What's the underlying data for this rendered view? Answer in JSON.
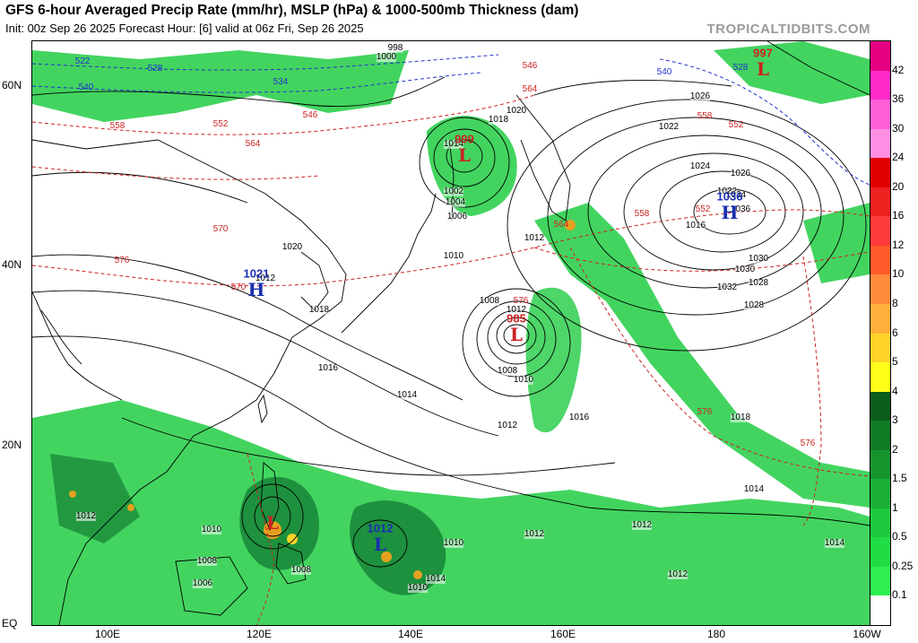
{
  "title": "GFS 6-hour Averaged Precip Rate (mm/hr), MSLP (hPa) & 1000-500mb Thickness (dam)",
  "subtitle": "Init: 00z Sep 26 2025   Forecast Hour: [6]   valid at 06z Fri, Sep 26 2025",
  "site": "TROPICALTIDBITS.COM",
  "map": {
    "lat_labels": [
      "60N",
      "40N",
      "20N",
      "EQ"
    ],
    "lon_labels": [
      "100E",
      "120E",
      "140E",
      "160E",
      "180",
      "160W"
    ],
    "colors": {
      "precip_light": "#22cc44",
      "precip_mid": "#1a8a3a",
      "precip_heavy": "#e6a020",
      "isobar": "#000000",
      "thickness_warm": "#cc2222",
      "thickness_cold": "#2233cc",
      "low": "#cc2222",
      "high": "#1a2fb0"
    }
  },
  "pressure_systems": [
    {
      "type": "L",
      "value": "999",
      "color": "#cc2222"
    },
    {
      "type": "L",
      "value": "985",
      "color": "#cc2222"
    },
    {
      "type": "L",
      "value": "997",
      "color": "#cc2222"
    },
    {
      "type": "H",
      "value": "1036",
      "color": "#1a2fb0"
    },
    {
      "type": "H",
      "value": "1021",
      "color": "#1a2fb0"
    },
    {
      "type": "L",
      "value": "1012",
      "color": "#1a2fb0"
    },
    {
      "type": "L",
      "value": "",
      "color": "#cc2222"
    }
  ],
  "isobar_labels": [
    "1008",
    "1010",
    "1012",
    "1014",
    "1016",
    "1018",
    "1020",
    "1022",
    "1024",
    "1026",
    "1028",
    "1030",
    "1032",
    "1034",
    "1036",
    "1002",
    "1004",
    "1006",
    "1000",
    "998",
    "1012",
    "1010",
    "1008",
    "1014",
    "1016",
    "1018",
    "1012",
    "1010",
    "1012",
    "1014",
    "1012",
    "1012",
    "1010",
    "1008",
    "1006",
    "1014",
    "1014",
    "1012",
    "1010",
    "1008",
    "1012",
    "1016",
    "1018",
    "1020",
    "1026",
    "1028",
    "1030",
    "1032"
  ],
  "thickness_labels": [
    "522",
    "528",
    "534",
    "540",
    "546",
    "552",
    "558",
    "564",
    "570",
    "576",
    "540",
    "528",
    "546",
    "552",
    "558",
    "564",
    "570",
    "576",
    "576",
    "576",
    "564",
    "558",
    "552"
  ],
  "colorbar": {
    "labels": [
      "42",
      "36",
      "30",
      "24",
      "20",
      "16",
      "12",
      "10",
      "8",
      "6",
      "5",
      "4",
      "3",
      "2",
      "1.5",
      "1",
      "0.5",
      "0.25",
      "0.1"
    ],
    "colors": [
      "#e4007f",
      "#ff2ac8",
      "#ff5fd7",
      "#ff8fe3",
      "#e10000",
      "#ef2020",
      "#ff3a3a",
      "#ff5a28",
      "#ff8a3a",
      "#ffb03a",
      "#ffd32a",
      "#ffff1a",
      "#0a5d1a",
      "#0f7a24",
      "#15942e",
      "#1ab035",
      "#1ec83d",
      "#22dc45",
      "#2ef051",
      "#ffffff"
    ]
  }
}
